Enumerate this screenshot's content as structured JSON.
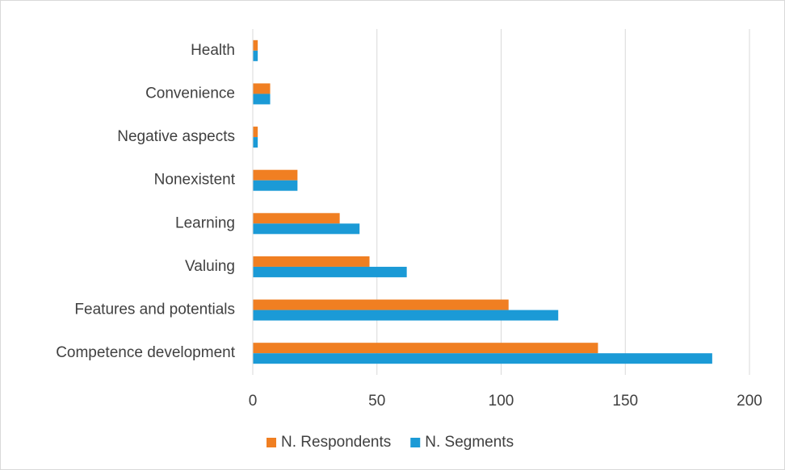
{
  "chart_data": {
    "type": "hbar",
    "categories": [
      "Health",
      "Convenience",
      "Negative aspects",
      "Nonexistent",
      "Learning",
      "Valuing",
      "Features and potentials",
      "Competence development"
    ],
    "series": [
      {
        "name": "N. Respondents",
        "color": "#f07f22",
        "values": [
          2,
          7,
          2,
          18,
          35,
          47,
          103,
          139
        ]
      },
      {
        "name": "N. Segments",
        "color": "#1b9ad6",
        "values": [
          2,
          7,
          2,
          18,
          43,
          62,
          123,
          185
        ]
      }
    ],
    "xlim": [
      0,
      200
    ],
    "xticks": [
      0,
      50,
      100,
      150,
      200
    ],
    "grid": true,
    "legend": "bottom"
  }
}
